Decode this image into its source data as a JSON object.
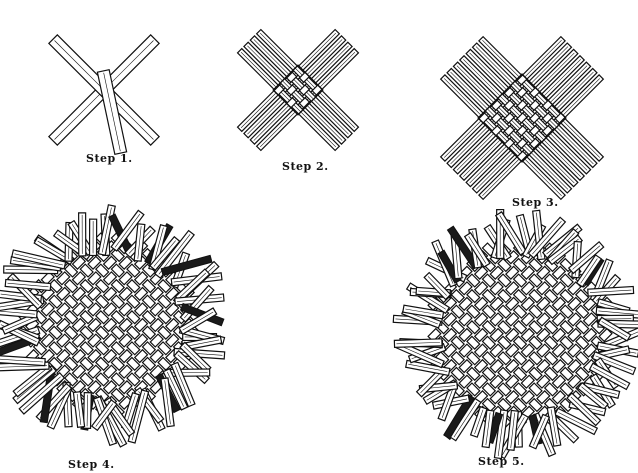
{
  "steps": [
    {
      "label": "Step 1."
    },
    {
      "label": "Step 2."
    },
    {
      "label": "Step 3."
    },
    {
      "label": "Step 4."
    },
    {
      "label": "Step 5."
    }
  ]
}
